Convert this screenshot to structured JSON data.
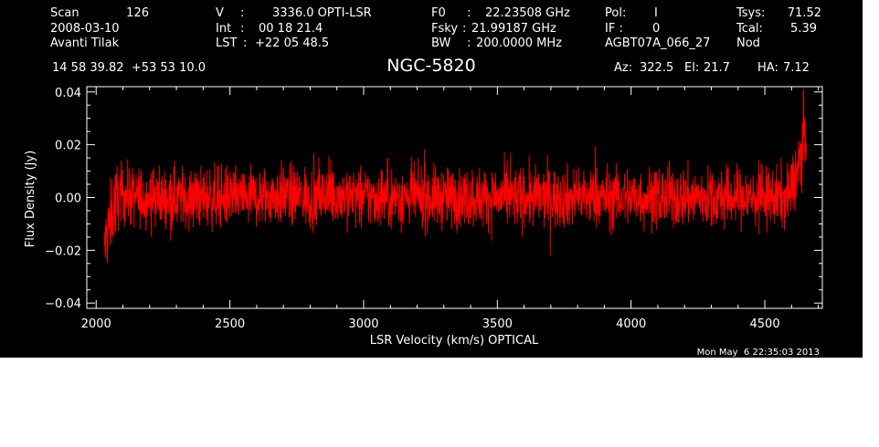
{
  "header": {
    "col1": {
      "scan_label": "Scan",
      "scan_value": "126",
      "date": "2008-03-10",
      "observer": "Avanti Tilak"
    },
    "col2": {
      "v_label": "V",
      "v_sep": ":",
      "v_value": "3336.0 OPTI-LSR",
      "int_label": "Int",
      "int_sep": ":",
      "int_value": "00 18 21.4",
      "lst_label": "LST",
      "lst_sep": ":",
      "lst_value": "+22 05 48.5"
    },
    "col3": {
      "f0_label": "F0",
      "f0_sep": ":",
      "f0_value": "22.23508 GHz",
      "fsky_label": "Fsky",
      "fsky_sep": ":",
      "fsky_value": "21.99187 GHz",
      "bw_label": "BW",
      "bw_sep": ":",
      "bw_value": "200.0000 MHz"
    },
    "col4": {
      "pol_label": "Pol:",
      "pol_value": "I",
      "if_label": "IF :",
      "if_value": "0",
      "project": "AGBT07A_066_27"
    },
    "col5": {
      "tsys_label": "Tsys:",
      "tsys_value": "71.52",
      "tcal_label": "Tcal:",
      "tcal_value": "5.39",
      "mode": "Nod"
    },
    "coords": "14 58 39.82  +53 53 10.0",
    "source": "NGC-5820",
    "az_label": "Az:",
    "az_value": "322.5",
    "el_label": "El:",
    "el_value": "21.7",
    "ha_label": "HA:",
    "ha_value": "7.12"
  },
  "timestamp": "Mon May  6 22:35:03 2013",
  "chart_data": {
    "type": "line",
    "title": "NGC-5820",
    "xlabel": "LSR Velocity (km/s) OPTICAL",
    "ylabel": "Flux Density (Jy)",
    "xlim": [
      1965,
      4715
    ],
    "ylim": [
      -0.042,
      0.042
    ],
    "xticks": [
      2000,
      2500,
      3000,
      3500,
      4000,
      4500
    ],
    "xtick_labels": [
      "2000",
      "2500",
      "3000",
      "3500",
      "4000",
      "4500"
    ],
    "yticks": [
      -0.04,
      -0.02,
      0.0,
      0.02,
      0.04
    ],
    "ytick_labels": [
      "−0.04",
      "−0.02",
      "0.00",
      "0.02",
      "0.04"
    ],
    "grid": false,
    "line_color": "#ff0000",
    "series": [
      {
        "x": [
          2030,
          2045,
          2060,
          2080,
          2100,
          2150,
          2200,
          2300,
          2400,
          2500,
          2600,
          2700,
          2800,
          2900,
          3000,
          3100,
          3200,
          3300,
          3400,
          3500,
          3600,
          3700,
          3800,
          3900,
          4000,
          4100,
          4200,
          4300,
          4400,
          4500,
          4550,
          4580,
          4600,
          4615,
          4630,
          4640,
          4648,
          4655
        ],
        "y": [
          -0.02,
          -0.012,
          -0.005,
          0.0,
          0.001,
          0.0,
          0.0,
          0.0,
          0.0,
          0.0,
          0.0,
          0.001,
          0.0,
          0.001,
          0.0,
          0.0,
          0.0,
          0.0,
          0.0,
          0.0,
          0.0,
          0.0,
          0.0,
          0.0,
          0.0,
          0.0,
          0.0,
          0.0,
          0.0,
          0.0,
          0.0,
          0.0,
          0.003,
          0.008,
          0.014,
          0.02,
          0.024,
          0.026
        ]
      }
    ]
  }
}
